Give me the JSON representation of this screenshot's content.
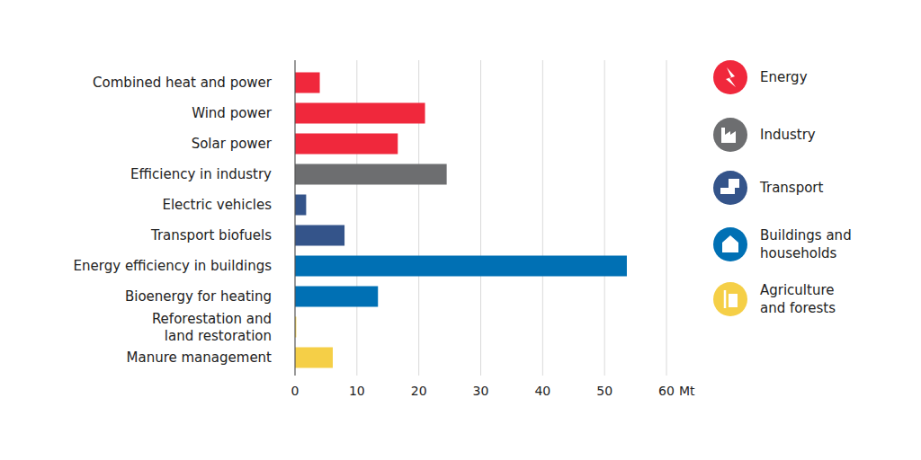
{
  "chart_data": {
    "type": "bar",
    "orientation": "horizontal",
    "categories": [
      "Combined heat and power",
      "Wind power",
      "Solar power",
      "Efficiency in industry",
      "Electric vehicles",
      "Transport biofuels",
      "Energy efficiency in buildings",
      "Bioenergy for heating",
      "Reforestation and\nland restoration",
      "Manure management"
    ],
    "series": [
      {
        "name": "Energy",
        "color": "#f0283c",
        "values": [
          4,
          21,
          16.6,
          null,
          null,
          null,
          null,
          null,
          null,
          null
        ]
      },
      {
        "name": "Industry",
        "color": "#6d6e70",
        "values": [
          null,
          null,
          null,
          24.5,
          null,
          null,
          null,
          null,
          null,
          null
        ]
      },
      {
        "name": "Transport",
        "color": "#34548a",
        "values": [
          null,
          null,
          null,
          null,
          1.8,
          8,
          null,
          null,
          null,
          null
        ]
      },
      {
        "name": "Buildings and\nhouseholds",
        "color": "#0070b4",
        "values": [
          null,
          null,
          null,
          null,
          null,
          null,
          53.6,
          13.4,
          null,
          null
        ]
      },
      {
        "name": "Agriculture\nand forests",
        "color": "#f5cf47",
        "values": [
          null,
          null,
          null,
          null,
          null,
          null,
          null,
          null,
          0.2,
          6.1
        ]
      }
    ],
    "xlabel": "Mt",
    "xlim": [
      0,
      60
    ],
    "xticks": [
      0,
      10,
      20,
      30,
      40,
      50,
      60
    ],
    "grid": true,
    "legend": "right"
  }
}
